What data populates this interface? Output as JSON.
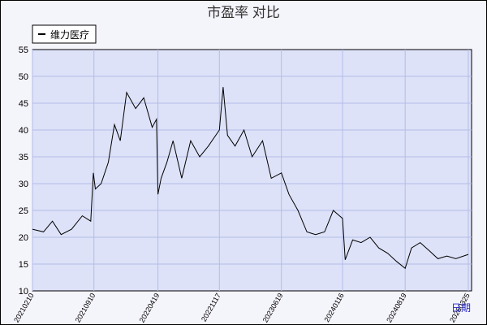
{
  "chart_data": {
    "type": "line",
    "title": "市盈率  对比",
    "legend_position": "top-left",
    "grid": true,
    "ylim": [
      10,
      55
    ],
    "yticks": [
      10,
      15,
      20,
      25,
      30,
      35,
      40,
      45,
      50,
      55
    ],
    "xlabel": "日期",
    "x_ticks": [
      "20210210",
      "20210910",
      "20220419",
      "20221117",
      "20230619",
      "20240116",
      "20240819",
      "20250325"
    ],
    "series": [
      {
        "name": "维力医疗",
        "color": "#000000",
        "x": [
          "20210210",
          "20210320",
          "20210420",
          "20210520",
          "20210625",
          "20210801",
          "20210830",
          "20210908",
          "20210915",
          "20211005",
          "20211030",
          "20211120",
          "20211210",
          "20220101",
          "20220201",
          "20220301",
          "20220330",
          "20220414",
          "20220419",
          "20220430",
          "20220520",
          "20220610",
          "20220710",
          "20220810",
          "20220910",
          "20221010",
          "20221117",
          "20221130",
          "20221215",
          "20230110",
          "20230210",
          "20230310",
          "20230415",
          "20230515",
          "20230619",
          "20230715",
          "20230815",
          "20230915",
          "20231015",
          "20231115",
          "20231215",
          "20240116",
          "20240125",
          "20240220",
          "20240320",
          "20240420",
          "20240520",
          "20240620",
          "20240720",
          "20240819",
          "20240910",
          "20241010",
          "20241110",
          "20241210",
          "20250110",
          "20250210",
          "20250325"
        ],
        "values": [
          21.5,
          21.0,
          23.0,
          20.5,
          21.5,
          24.0,
          23.0,
          32.0,
          29.0,
          30.0,
          34.0,
          41.0,
          38.0,
          47.0,
          44.0,
          46.0,
          40.5,
          42.0,
          28.0,
          31.0,
          34.0,
          38.0,
          31.0,
          38.0,
          35.0,
          37.0,
          40.0,
          48.0,
          39.0,
          37.0,
          40.0,
          35.0,
          38.0,
          31.0,
          32.0,
          28.0,
          25.0,
          21.0,
          20.5,
          21.0,
          25.0,
          23.5,
          15.8,
          19.5,
          19.0,
          20.0,
          18.0,
          17.0,
          15.5,
          14.2,
          18.0,
          19.0,
          17.5,
          16.0,
          16.5,
          16.0,
          16.8
        ]
      }
    ]
  }
}
